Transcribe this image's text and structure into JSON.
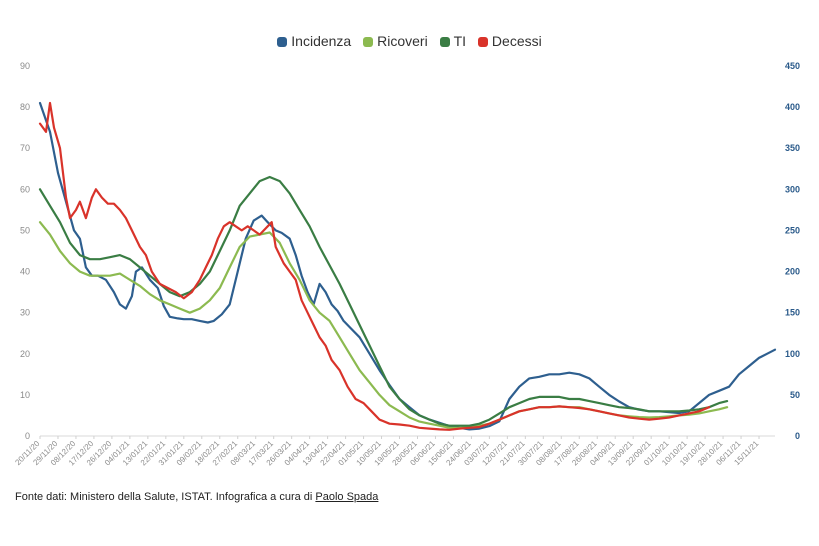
{
  "chart_data": {
    "type": "line",
    "title": "",
    "legend": [
      {
        "name": "Incidenza",
        "color": "#2e5f8f"
      },
      {
        "name": "Ricoveri",
        "color": "#8cba50"
      },
      {
        "name": "TI",
        "color": "#3a7d44"
      },
      {
        "name": "Decessi",
        "color": "#d9332a"
      }
    ],
    "legend_position": "top-center",
    "y_left": {
      "min": 0,
      "max": 90,
      "ticks": [
        "0",
        "10",
        "20",
        "30",
        "40",
        "50",
        "60",
        "70",
        "80",
        "90"
      ]
    },
    "y_right": {
      "min": 0,
      "max": 450,
      "ticks": [
        "0",
        "50",
        "100",
        "150",
        "200",
        "250",
        "300",
        "350",
        "400",
        "450"
      ]
    },
    "x_ticks": [
      "20/11/20",
      "29/11/20",
      "08/12/20",
      "17/12/20",
      "26/12/20",
      "04/01/21",
      "13/01/21",
      "22/01/21",
      "31/01/21",
      "09/02/21",
      "18/02/21",
      "27/02/21",
      "08/03/21",
      "17/03/21",
      "26/03/21",
      "04/04/21",
      "13/04/21",
      "22/04/21",
      "01/05/21",
      "10/05/21",
      "19/05/21",
      "28/05/21",
      "06/06/21",
      "15/06/21",
      "24/06/21",
      "03/07/21",
      "12/07/21",
      "21/07/21",
      "30/07/21",
      "08/08/21",
      "17/08/21",
      "26/08/21",
      "04/09/21",
      "13/09/21",
      "22/09/21",
      "01/10/21",
      "10/10/21",
      "19/10/21",
      "28/10/21",
      "06/11/21",
      "15/11/21"
    ],
    "x_range_days": [
      0,
      368
    ],
    "series": [
      {
        "name": "Incidenza",
        "axis": "right",
        "color": "#2e5f8f",
        "x": [
          0,
          5,
          9,
          13,
          17,
          20,
          23,
          26,
          29,
          33,
          37,
          40,
          43,
          46,
          48,
          51,
          55,
          59,
          62,
          65,
          69,
          72,
          76,
          80,
          84,
          87,
          91,
          95,
          99,
          103,
          107,
          111,
          114,
          118,
          121,
          125,
          128,
          131,
          134,
          137,
          140,
          143,
          146,
          149,
          152,
          156,
          160,
          165,
          170,
          175,
          180,
          185,
          190,
          195,
          200,
          205,
          210,
          215,
          220,
          225,
          230,
          235,
          240,
          245,
          250,
          255,
          260,
          265,
          270,
          275,
          280,
          285,
          290,
          295,
          300,
          305,
          310,
          315,
          320,
          325,
          330,
          335,
          340,
          345,
          350,
          355,
          360,
          364,
          368
        ],
        "y": [
          405,
          370,
          320,
          285,
          250,
          240,
          205,
          195,
          195,
          190,
          175,
          160,
          155,
          170,
          200,
          205,
          190,
          180,
          158,
          145,
          143,
          142,
          142,
          140,
          138,
          140,
          148,
          160,
          200,
          240,
          262,
          268,
          260,
          250,
          247,
          240,
          220,
          195,
          175,
          160,
          185,
          175,
          160,
          152,
          140,
          130,
          120,
          100,
          80,
          62,
          45,
          35,
          25,
          20,
          16,
          12,
          10,
          8,
          9,
          12,
          18,
          45,
          60,
          70,
          72,
          75,
          75,
          77,
          75,
          70,
          60,
          50,
          42,
          35,
          32,
          30,
          30,
          29,
          28,
          30,
          40,
          50,
          55,
          60,
          75,
          85,
          95,
          100,
          105
        ]
      },
      {
        "name": "Ricoveri",
        "axis": "left",
        "color": "#8cba50",
        "x": [
          0,
          5,
          10,
          15,
          20,
          25,
          30,
          35,
          40,
          45,
          50,
          55,
          60,
          65,
          70,
          75,
          80,
          85,
          90,
          95,
          100,
          105,
          110,
          115,
          120,
          125,
          130,
          135,
          140,
          145,
          150,
          155,
          160,
          165,
          170,
          175,
          180,
          185,
          190,
          195,
          200,
          205,
          210,
          215,
          220,
          225,
          230,
          235,
          240,
          245,
          250,
          255,
          260,
          265,
          270,
          275,
          280,
          285,
          290,
          295,
          300,
          305,
          310,
          315,
          320,
          325,
          330,
          335,
          340,
          344
        ],
        "y": [
          52,
          49,
          45,
          42,
          40,
          39,
          39,
          39,
          39.5,
          38,
          36.5,
          34.5,
          33,
          32,
          31,
          30,
          31,
          33,
          36,
          41,
          46,
          48.5,
          49,
          49.5,
          47,
          42,
          38,
          33,
          30,
          28,
          24,
          20,
          16,
          13,
          10,
          7.5,
          6,
          4.5,
          3.5,
          3,
          2.5,
          2,
          2,
          2.2,
          2.5,
          3,
          4,
          5,
          6,
          6.5,
          7,
          7,
          7.2,
          7,
          7,
          6.5,
          6,
          5.5,
          5,
          4.8,
          4.6,
          4.5,
          4.6,
          4.8,
          5,
          5.2,
          5.5,
          6,
          6.5,
          7
        ]
      },
      {
        "name": "TI",
        "axis": "left",
        "color": "#3a7d44",
        "x": [
          0,
          5,
          10,
          15,
          20,
          25,
          30,
          35,
          40,
          45,
          50,
          55,
          60,
          65,
          70,
          75,
          80,
          85,
          90,
          95,
          100,
          105,
          110,
          115,
          120,
          125,
          130,
          135,
          140,
          145,
          150,
          155,
          160,
          165,
          170,
          175,
          180,
          185,
          190,
          195,
          200,
          205,
          210,
          215,
          220,
          225,
          230,
          235,
          240,
          245,
          250,
          255,
          260,
          265,
          270,
          275,
          280,
          285,
          290,
          295,
          300,
          305,
          310,
          315,
          320,
          325,
          330,
          335,
          340,
          344
        ],
        "y": [
          60,
          56,
          52,
          47,
          44,
          43,
          43,
          43.5,
          44,
          43,
          41,
          39,
          37,
          35,
          34,
          35,
          37,
          40,
          45,
          50,
          56,
          59,
          62,
          63,
          62,
          59,
          55,
          51,
          46,
          41.5,
          37,
          32,
          27,
          22,
          17,
          12,
          9,
          6.5,
          5,
          4,
          3,
          2.5,
          2.5,
          2.5,
          3,
          4,
          5.5,
          7,
          8,
          9,
          9.5,
          9.5,
          9.5,
          9,
          9,
          8.5,
          8,
          7.5,
          7,
          6.8,
          6.5,
          6,
          6,
          6,
          6,
          6.2,
          6.5,
          7,
          8,
          8.5
        ]
      },
      {
        "name": "Decessi",
        "axis": "left",
        "color": "#d9332a",
        "x": [
          0,
          3,
          5,
          7,
          10,
          13,
          15,
          18,
          20,
          23,
          26,
          28,
          31,
          34,
          37,
          40,
          43,
          46,
          50,
          53,
          56,
          60,
          64,
          68,
          72,
          76,
          80,
          83,
          86,
          89,
          92,
          95,
          98,
          101,
          104,
          107,
          110,
          113,
          116,
          118,
          120,
          122,
          125,
          128,
          131,
          134,
          137,
          140,
          143,
          146,
          150,
          154,
          158,
          162,
          166,
          170,
          175,
          180,
          185,
          190,
          195,
          200,
          205,
          210,
          215,
          220,
          225,
          230,
          235,
          240,
          245,
          250,
          255,
          260,
          265,
          270,
          275,
          280,
          285,
          290,
          295,
          300,
          305,
          310,
          315,
          320,
          325,
          330,
          335
        ],
        "y": [
          76,
          74,
          81,
          75,
          70,
          58,
          53,
          55,
          57,
          53,
          58,
          60,
          58,
          56.5,
          56.5,
          55,
          53,
          50,
          46,
          44,
          40,
          37,
          36,
          35,
          33.5,
          35,
          38,
          41,
          44,
          48,
          51,
          52,
          51,
          50,
          51,
          50,
          49,
          50.5,
          52,
          46,
          44,
          42,
          40,
          38,
          33,
          30,
          27,
          24,
          22,
          18.5,
          16,
          12,
          9,
          8,
          6,
          4,
          3,
          2.8,
          2.5,
          2,
          1.8,
          1.6,
          1.5,
          1.8,
          2,
          2.2,
          3,
          4,
          5,
          6,
          6.5,
          7,
          7,
          7.2,
          7,
          6.8,
          6.5,
          6,
          5.5,
          5,
          4.5,
          4.2,
          4,
          4.2,
          4.5,
          5,
          5.5,
          6,
          7
        ]
      }
    ]
  },
  "footer": {
    "source_text": "Fonte dati: Ministero della Salute, ISTAT. Infografica a cura di ",
    "author_link": "Paolo Spada"
  }
}
